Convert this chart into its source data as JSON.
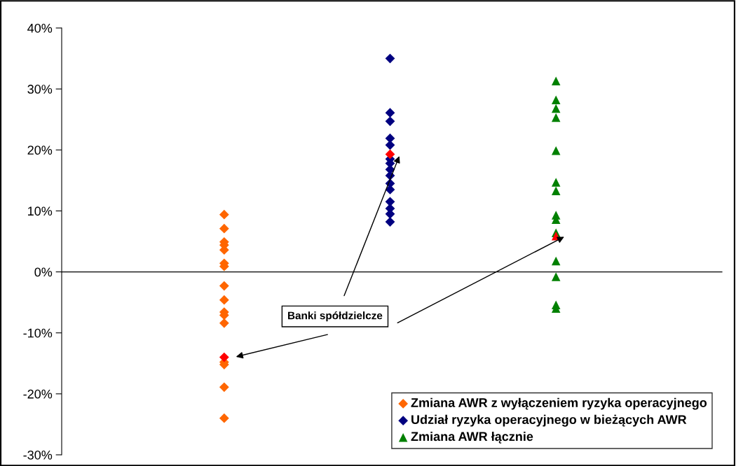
{
  "chart_data": {
    "type": "scatter",
    "categories": [
      null,
      null,
      null
    ],
    "ylim": [
      -30,
      40
    ],
    "yticks": [
      {
        "value": -30,
        "label": "-30%"
      },
      {
        "value": -20,
        "label": "-20%"
      },
      {
        "value": -10,
        "label": "-10%"
      },
      {
        "value": 0,
        "label": "0%"
      },
      {
        "value": 10,
        "label": "10%"
      },
      {
        "value": 20,
        "label": "20%"
      },
      {
        "value": 30,
        "label": "30%"
      },
      {
        "value": 40,
        "label": "40%"
      }
    ],
    "tick_labels": "y",
    "grid": false,
    "legend": "bottom right",
    "ref_lines": [
      {
        "axis": "y",
        "value": 0,
        "color": "#000000"
      }
    ],
    "annotations": [
      "Banki spółdzielcze"
    ],
    "series": [
      {
        "name": "Zmiana AWR z wyłączeniem ryzyka operacyjnego",
        "color": "#ff6600",
        "marker": "diamond",
        "values": [
          9.4,
          null,
          null
        ]
      },
      {
        "color": "#ff6600",
        "marker": "diamond",
        "values": [
          7.1,
          null,
          null
        ]
      },
      {
        "color": "#ff6600",
        "marker": "diamond",
        "values": [
          4.9,
          null,
          null
        ]
      },
      {
        "color": "#ff6600",
        "marker": "diamond",
        "values": [
          4.4,
          null,
          null
        ]
      },
      {
        "color": "#ff6600",
        "marker": "diamond",
        "values": [
          3.6,
          null,
          null
        ]
      },
      {
        "color": "#ff6600",
        "marker": "diamond",
        "values": [
          1.4,
          null,
          null
        ]
      },
      {
        "color": "#ff6600",
        "marker": "diamond",
        "values": [
          0.9,
          null,
          null
        ]
      },
      {
        "color": "#ff6600",
        "marker": "diamond",
        "values": [
          -2.3,
          null,
          null
        ]
      },
      {
        "color": "#ff6600",
        "marker": "diamond",
        "values": [
          -4.6,
          null,
          null
        ]
      },
      {
        "color": "#ff6600",
        "marker": "diamond",
        "values": [
          -6.6,
          null,
          null
        ]
      },
      {
        "color": "#ff6600",
        "marker": "diamond",
        "values": [
          -7.1,
          null,
          null
        ]
      },
      {
        "color": "#ff6600",
        "marker": "diamond",
        "values": [
          -8.4,
          null,
          null
        ]
      },
      {
        "color": "#ff6600",
        "marker": "diamond",
        "values": [
          -14.8,
          null,
          null
        ]
      },
      {
        "color": "#ff6600",
        "marker": "diamond",
        "values": [
          -15.2,
          null,
          null
        ]
      },
      {
        "color": "#ff6600",
        "marker": "diamond",
        "values": [
          -18.9,
          null,
          null
        ]
      },
      {
        "color": "#ff6600",
        "marker": "diamond",
        "values": [
          -24.0,
          null,
          null
        ]
      },
      {
        "name": "Udział ryzyka operacyjnego w bieżących AWR",
        "color": "#000080",
        "marker": "diamond",
        "values": [
          null,
          35.0,
          null
        ]
      },
      {
        "color": "#000080",
        "marker": "diamond",
        "values": [
          null,
          26.1,
          null
        ]
      },
      {
        "color": "#000080",
        "marker": "diamond",
        "values": [
          null,
          24.7,
          null
        ]
      },
      {
        "color": "#000080",
        "marker": "diamond",
        "values": [
          null,
          21.9,
          null
        ]
      },
      {
        "color": "#000080",
        "marker": "diamond",
        "values": [
          null,
          20.8,
          null
        ]
      },
      {
        "color": "#000080",
        "marker": "diamond",
        "values": [
          null,
          18.5,
          null
        ]
      },
      {
        "color": "#000080",
        "marker": "diamond",
        "values": [
          null,
          17.8,
          null
        ]
      },
      {
        "color": "#000080",
        "marker": "diamond",
        "values": [
          null,
          16.8,
          null
        ]
      },
      {
        "color": "#000080",
        "marker": "diamond",
        "values": [
          null,
          15.8,
          null
        ]
      },
      {
        "color": "#000080",
        "marker": "diamond",
        "values": [
          null,
          14.5,
          null
        ]
      },
      {
        "color": "#000080",
        "marker": "diamond",
        "values": [
          null,
          13.5,
          null
        ]
      },
      {
        "color": "#000080",
        "marker": "diamond",
        "values": [
          null,
          11.5,
          null
        ]
      },
      {
        "color": "#000080",
        "marker": "diamond",
        "values": [
          null,
          10.4,
          null
        ]
      },
      {
        "color": "#000080",
        "marker": "diamond",
        "values": [
          null,
          9.5,
          null
        ]
      },
      {
        "color": "#000080",
        "marker": "diamond",
        "values": [
          null,
          8.2,
          null
        ]
      },
      {
        "name": "Zmiana AWR łącznie",
        "color": "#008000",
        "marker": "triangle",
        "values": [
          null,
          null,
          31.3
        ]
      },
      {
        "color": "#008000",
        "marker": "triangle",
        "values": [
          null,
          null,
          28.2
        ]
      },
      {
        "color": "#008000",
        "marker": "triangle",
        "values": [
          null,
          null,
          26.8
        ]
      },
      {
        "color": "#008000",
        "marker": "triangle",
        "values": [
          null,
          null,
          25.3
        ]
      },
      {
        "color": "#008000",
        "marker": "triangle",
        "values": [
          null,
          null,
          19.9
        ]
      },
      {
        "color": "#008000",
        "marker": "triangle",
        "values": [
          null,
          null,
          14.7
        ]
      },
      {
        "color": "#008000",
        "marker": "triangle",
        "values": [
          null,
          null,
          13.3
        ]
      },
      {
        "color": "#008000",
        "marker": "triangle",
        "values": [
          null,
          null,
          9.3
        ]
      },
      {
        "color": "#008000",
        "marker": "triangle",
        "values": [
          null,
          null,
          8.6
        ]
      },
      {
        "color": "#008000",
        "marker": "triangle",
        "values": [
          null,
          null,
          6.4
        ]
      },
      {
        "color": "#008000",
        "marker": "triangle",
        "values": [
          null,
          null,
          1.8
        ]
      },
      {
        "color": "#008000",
        "marker": "triangle",
        "values": [
          null,
          null,
          -0.8
        ]
      },
      {
        "color": "#008000",
        "marker": "triangle",
        "values": [
          null,
          null,
          -5.4
        ]
      },
      {
        "color": "#008000",
        "marker": "triangle",
        "values": [
          null,
          null,
          -6.0
        ]
      },
      {
        "color": "#ff0000",
        "marker": "diamond",
        "values": [
          -14.0,
          null,
          null
        ]
      },
      {
        "color": "#ff0000",
        "marker": "diamond",
        "values": [
          null,
          19.3,
          null
        ]
      },
      {
        "color": "#ff0000",
        "marker": "triangle",
        "values": [
          null,
          null,
          5.9
        ]
      }
    ]
  }
}
